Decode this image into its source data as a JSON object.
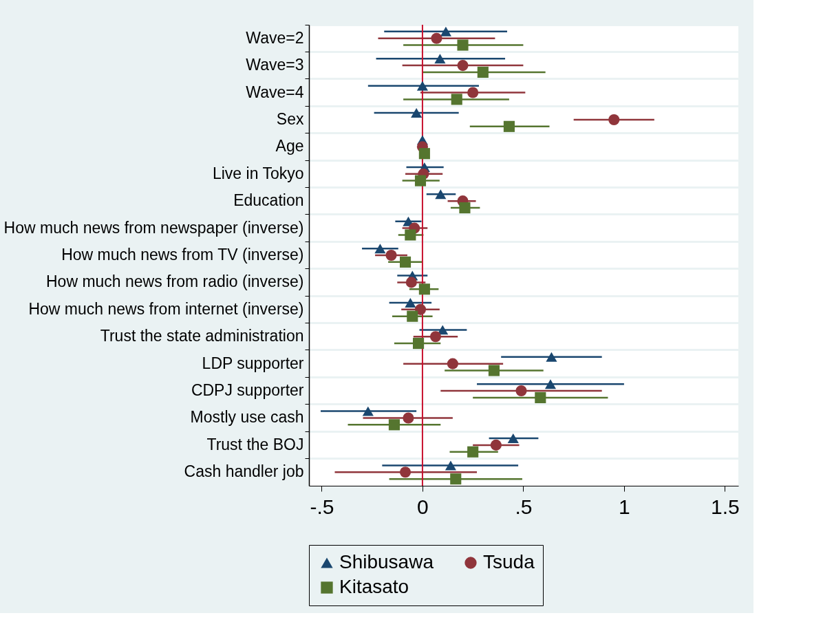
{
  "chart_data": {
    "type": "scatter",
    "orientation": "horizontal",
    "categories": [
      "Wave=2",
      "Wave=3",
      "Wave=4",
      "Sex",
      "Age",
      "Live in Tokyo",
      "Education",
      "How much news from newspaper (inverse)",
      "How much news from TV (inverse)",
      "How much news from radio (inverse)",
      "How much news from internet (inverse)",
      "Trust the state administration",
      "LDP supporter",
      "CDPJ supporter",
      "Mostly use cash",
      "Trust the BOJ",
      "Cash handler job"
    ],
    "series": [
      {
        "name": "Shibusawa",
        "color": "#1a476f",
        "marker": "triangle",
        "values": [
          0.116,
          0.087,
          0.0,
          -0.03,
          0.0,
          0.01,
          0.09,
          -0.07,
          -0.21,
          -0.05,
          -0.06,
          0.1,
          0.64,
          0.635,
          -0.27,
          0.45,
          0.14
        ],
        "errors": [
          [
            -0.19,
            0.42
          ],
          [
            -0.23,
            0.41
          ],
          [
            -0.27,
            0.28
          ],
          [
            -0.24,
            0.18
          ],
          null,
          [
            -0.08,
            0.105
          ],
          [
            0.02,
            0.165
          ],
          [
            -0.135,
            -0.005
          ],
          [
            -0.3,
            -0.12
          ],
          [
            -0.125,
            0.025
          ],
          [
            -0.165,
            0.045
          ],
          [
            -0.015,
            0.22
          ],
          [
            0.39,
            0.89
          ],
          [
            0.27,
            1.0
          ],
          [
            -0.505,
            -0.03
          ],
          [
            0.33,
            0.575
          ],
          [
            -0.2,
            0.475
          ]
        ]
      },
      {
        "name": "Tsuda",
        "color": "#90353b",
        "marker": "circle",
        "values": [
          0.07,
          0.2,
          0.25,
          0.95,
          0.0,
          0.005,
          0.2,
          -0.04,
          -0.155,
          -0.055,
          -0.01,
          0.065,
          0.15,
          0.49,
          -0.07,
          0.365,
          -0.085
        ],
        "errors": [
          [
            -0.22,
            0.36
          ],
          [
            -0.1,
            0.5
          ],
          [
            -0.01,
            0.51
          ],
          [
            0.75,
            1.15
          ],
          null,
          [
            -0.085,
            0.1
          ],
          [
            0.125,
            0.265
          ],
          [
            -0.1,
            0.025
          ],
          [
            -0.235,
            -0.075
          ],
          [
            -0.125,
            0.015
          ],
          [
            -0.105,
            0.085
          ],
          [
            -0.045,
            0.175
          ],
          [
            -0.095,
            0.4
          ],
          [
            0.09,
            0.89
          ],
          [
            -0.295,
            0.15
          ],
          [
            0.25,
            0.48
          ],
          [
            -0.435,
            0.27
          ]
        ]
      },
      {
        "name": "Kitasato",
        "color": "#55752f",
        "marker": "square",
        "values": [
          0.2,
          0.3,
          0.17,
          0.43,
          0.01,
          -0.01,
          0.21,
          -0.06,
          -0.085,
          0.01,
          -0.05,
          -0.02,
          0.355,
          0.585,
          -0.14,
          0.25,
          0.165
        ],
        "errors": [
          [
            -0.095,
            0.5
          ],
          [
            0.0,
            0.61
          ],
          [
            -0.095,
            0.43
          ],
          [
            0.235,
            0.63
          ],
          null,
          [
            -0.1,
            0.085
          ],
          [
            0.14,
            0.285
          ],
          [
            -0.12,
            0.005
          ],
          [
            -0.17,
            0.0
          ],
          [
            -0.065,
            0.08
          ],
          [
            -0.15,
            0.05
          ],
          [
            -0.14,
            0.09
          ],
          [
            0.11,
            0.6
          ],
          [
            0.25,
            0.92
          ],
          [
            -0.37,
            0.09
          ],
          [
            0.135,
            0.375
          ],
          [
            -0.165,
            0.495
          ]
        ]
      }
    ],
    "xlim": [
      -0.563,
      1.567
    ],
    "xticks": [
      {
        "value": -0.5,
        "label": "-.5"
      },
      0,
      {
        "value": 0.5,
        "label": ".5"
      },
      1,
      {
        "value": 1.5,
        "label": "1.5"
      }
    ],
    "ref_lines": [
      {
        "axis": "x",
        "value": 0,
        "color": "#c8102e"
      }
    ],
    "grid": "y",
    "legend": "bottom"
  }
}
